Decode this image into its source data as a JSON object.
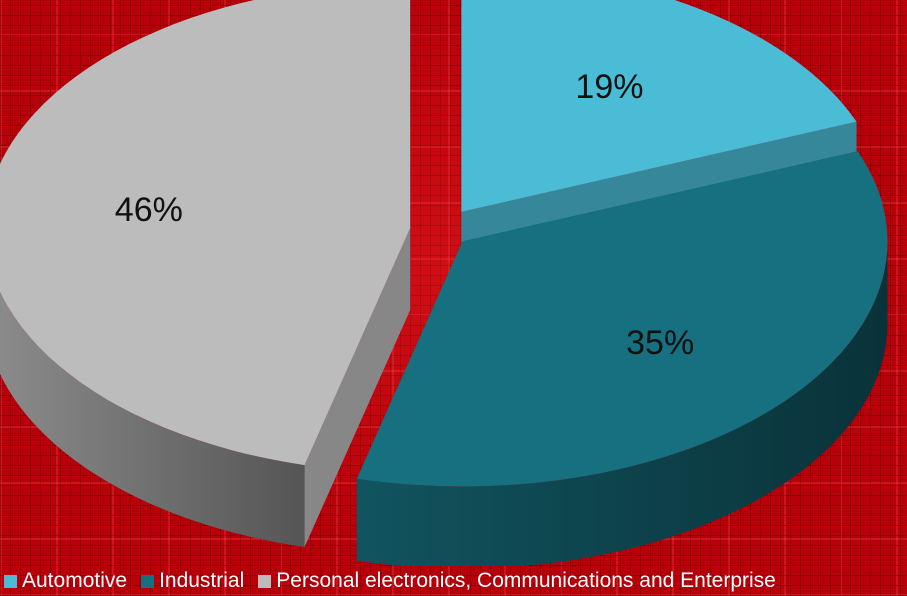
{
  "chart_data": {
    "type": "pie",
    "style": "3d-exploded",
    "title": "",
    "slices": [
      {
        "name": "Automotive",
        "value": 19,
        "label": "19%",
        "color": "#4bbcd6"
      },
      {
        "name": "Industrial",
        "value": 35,
        "label": "35%",
        "color": "#16707f"
      },
      {
        "name": "Personal electronics, Communications and Enterprise",
        "value": 46,
        "label": "46%",
        "color": "#bcbcbc"
      }
    ],
    "legend_position": "bottom"
  }
}
